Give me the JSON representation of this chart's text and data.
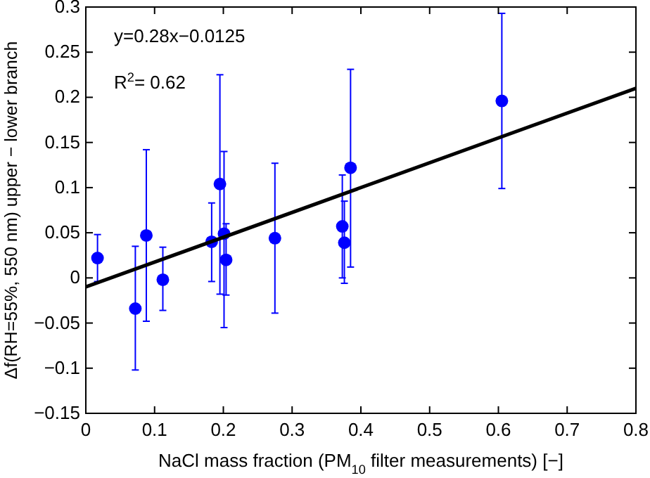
{
  "chart_data": {
    "type": "scatter",
    "xlabel": "NaCl mass fraction (PM$_{10}$ filter measurements) [−]",
    "ylabel": "Δf(RH=55%, 550 nm) upper − lower branch",
    "annotations": [
      "y=0.28x−0.0125",
      "R$^{2}$= 0.62"
    ],
    "xlim": [
      0,
      0.8
    ],
    "xticks": [
      0,
      0.1,
      0.2,
      0.3,
      0.4,
      0.5,
      0.6,
      0.7,
      0.8
    ],
    "ylim": [
      -0.15,
      0.3
    ],
    "yticks": [
      {
        "value": -0.15,
        "label": "−0.15"
      },
      {
        "value": -0.1,
        "label": "−0.1"
      },
      {
        "value": -0.05,
        "label": "−0.05"
      },
      0,
      0.05,
      0.1,
      0.15,
      0.2,
      0.25,
      0.3
    ],
    "marker": "circle",
    "series": [
      {
        "color": "#0000ff",
        "x": [
          0.017,
          0.072,
          0.088,
          0.112,
          0.183,
          0.195,
          0.201,
          0.204,
          0.275,
          0.373,
          0.376,
          0.385,
          0.605
        ],
        "values": [
          0.022,
          -0.034,
          0.047,
          -0.002,
          0.04,
          0.104,
          0.049,
          0.02,
          0.044,
          0.057,
          0.039,
          0.122,
          0.196
        ],
        "errors": [
          [
            -0.004,
            0.048
          ],
          [
            -0.102,
            0.035
          ],
          [
            -0.048,
            0.142
          ],
          [
            -0.036,
            0.034
          ],
          [
            -0.004,
            0.083
          ],
          [
            -0.018,
            0.225
          ],
          [
            -0.055,
            0.14
          ],
          [
            -0.019,
            0.06
          ],
          [
            -0.039,
            0.127
          ],
          [
            0,
            0.114
          ],
          [
            -0.006,
            0.085
          ],
          [
            0.012,
            0.231
          ],
          [
            0.099,
            0.293
          ]
        ]
      },
      {
        "type": "line",
        "color": "#000000",
        "marker": "none",
        "x": [
          0,
          0.8
        ],
        "values": [
          -0.01,
          0.21
        ]
      }
    ]
  }
}
